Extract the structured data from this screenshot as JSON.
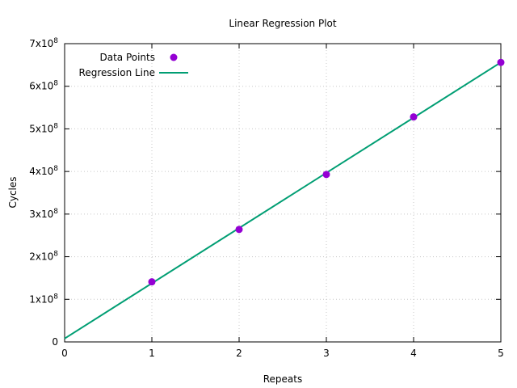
{
  "chart_data": {
    "type": "scatter",
    "title": "Linear Regression Plot",
    "xlabel": "Repeats",
    "ylabel": "Cycles",
    "xlim": [
      0,
      5
    ],
    "ylim": [
      0,
      700000000
    ],
    "grid": true,
    "legend_position": "top-left",
    "x_ticks": [
      0,
      1,
      2,
      3,
      4,
      5
    ],
    "x_tick_labels": [
      "0",
      "1",
      "2",
      "3",
      "4",
      "5"
    ],
    "y_ticks": [
      0,
      100000000,
      200000000,
      300000000,
      400000000,
      500000000,
      600000000,
      700000000
    ],
    "y_tick_labels": [
      {
        "mantissa": "0",
        "exponent": ""
      },
      {
        "mantissa": "1x10",
        "exponent": "8"
      },
      {
        "mantissa": "2x10",
        "exponent": "8"
      },
      {
        "mantissa": "3x10",
        "exponent": "8"
      },
      {
        "mantissa": "4x10",
        "exponent": "8"
      },
      {
        "mantissa": "5x10",
        "exponent": "8"
      },
      {
        "mantissa": "6x10",
        "exponent": "8"
      },
      {
        "mantissa": "7x10",
        "exponent": "8"
      }
    ],
    "series": [
      {
        "name": "Data Points",
        "kind": "points",
        "color": "#9400d3",
        "x": [
          1,
          2,
          3,
          4,
          5
        ],
        "y": [
          141000000,
          264000000,
          393000000,
          528000000,
          656000000
        ]
      },
      {
        "name": "Regression Line",
        "kind": "line",
        "color": "#009e73",
        "x": [
          0,
          5
        ],
        "y": [
          8000000,
          656000000
        ]
      }
    ]
  }
}
